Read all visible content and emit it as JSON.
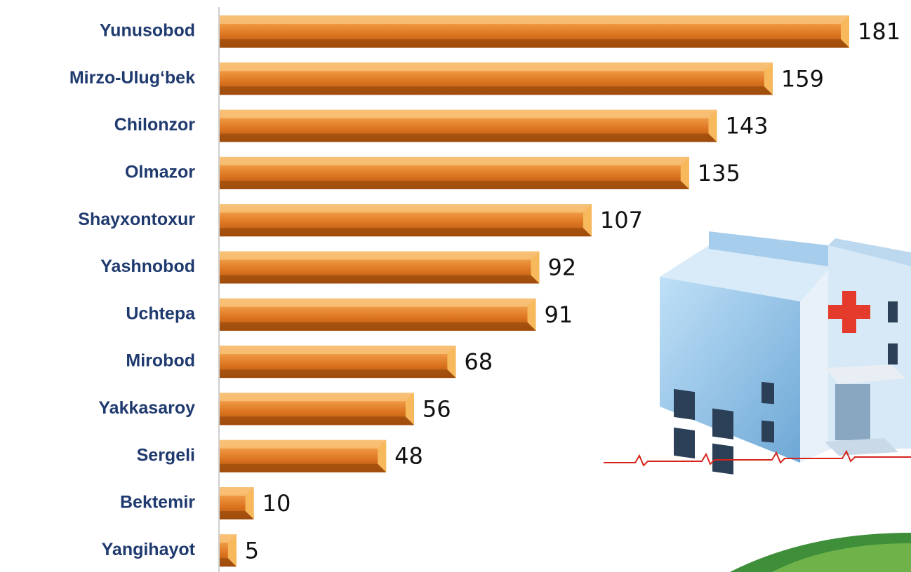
{
  "chart_data": {
    "type": "bar",
    "orientation": "horizontal",
    "categories": [
      "Yunusobod",
      "Mirzo-Ulug‘bek",
      "Chilonzor",
      "Olmazor",
      "Shayxontoxur",
      "Yashnobod",
      "Uchtepa",
      "Mirobod",
      "Yakkasaroy",
      "Sergeli",
      "Bektemir",
      "Yangihayot"
    ],
    "values": [
      181,
      159,
      143,
      135,
      107,
      92,
      91,
      68,
      56,
      48,
      10,
      5
    ],
    "color": "#e67e22"
  }
}
